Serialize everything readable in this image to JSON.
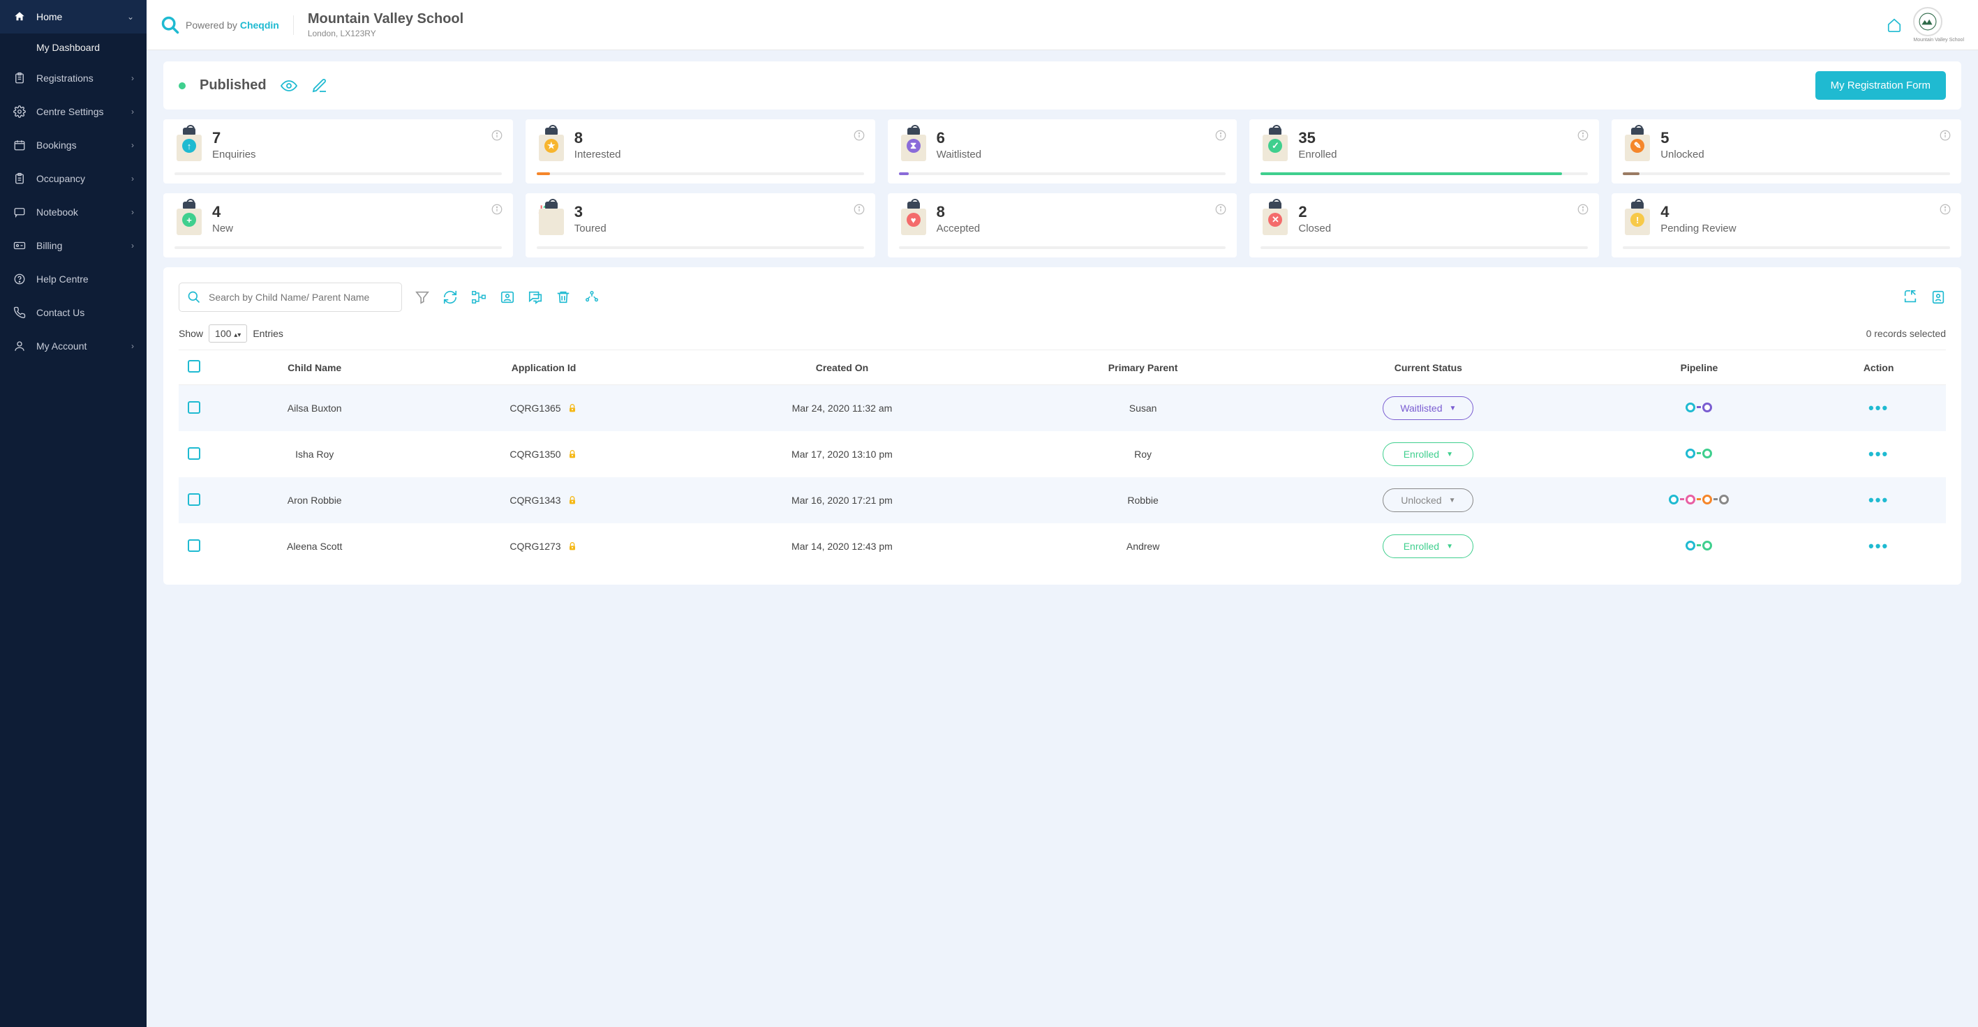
{
  "brand": {
    "prefix": "Powered by ",
    "name": "Cheqdin"
  },
  "school": {
    "name": "Mountain Valley School",
    "location": "London, LX123RY",
    "logo_label": "Mountain Valley School"
  },
  "sidebar": {
    "items": [
      {
        "label": "Home",
        "icon": "home",
        "expandable": true,
        "active": true
      },
      {
        "label": "Registrations",
        "icon": "clipboard",
        "expandable": true
      },
      {
        "label": "Centre Settings",
        "icon": "gear",
        "expandable": true
      },
      {
        "label": "Bookings",
        "icon": "calendar",
        "expandable": true
      },
      {
        "label": "Occupancy",
        "icon": "clipboard-check",
        "expandable": true
      },
      {
        "label": "Notebook",
        "icon": "message",
        "expandable": true
      },
      {
        "label": "Billing",
        "icon": "billing",
        "expandable": true
      },
      {
        "label": "Help Centre",
        "icon": "help",
        "expandable": false
      },
      {
        "label": "Contact Us",
        "icon": "phone",
        "expandable": false
      },
      {
        "label": "My Account",
        "icon": "user",
        "expandable": true
      }
    ],
    "sub_item": "My Dashboard"
  },
  "published": {
    "label": "Published",
    "button": "My Registration Form"
  },
  "cards": {
    "row1": [
      {
        "count": "7",
        "label": "Enquiries",
        "fill_pct": 0,
        "fill_color": "#1fbad1",
        "icon_bg": "#1fbad1",
        "glyph": "↑"
      },
      {
        "count": "8",
        "label": "Interested",
        "fill_pct": 4,
        "fill_color": "#f5862a",
        "icon_bg": "#f7b52e",
        "glyph": "★"
      },
      {
        "count": "6",
        "label": "Waitlisted",
        "fill_pct": 3,
        "fill_color": "#8a6bd9",
        "icon_bg": "#8a6bd9",
        "glyph": "⧗"
      },
      {
        "count": "35",
        "label": "Enrolled",
        "fill_pct": 92,
        "fill_color": "#3fcf8e",
        "icon_bg": "#3fcf8e",
        "glyph": "✓"
      },
      {
        "count": "5",
        "label": "Unlocked",
        "fill_pct": 5,
        "fill_color": "#9a7b63",
        "icon_bg": "#f5862a",
        "glyph": "✎"
      }
    ],
    "row2": [
      {
        "count": "4",
        "label": "New",
        "fill_pct": 0,
        "fill_color": "#3fcf8e",
        "icon_bg": "#3fcf8e",
        "glyph": "+"
      },
      {
        "count": "3",
        "label": "Toured",
        "fill_pct": 0,
        "fill_color": "#f5862a",
        "icon_bg": "#ffffff",
        "glyph": "ta"
      },
      {
        "count": "8",
        "label": "Accepted",
        "fill_pct": 0,
        "fill_color": "#f46b6b",
        "icon_bg": "#f46b6b",
        "glyph": "♥"
      },
      {
        "count": "2",
        "label": "Closed",
        "fill_pct": 0,
        "fill_color": "#f46b6b",
        "icon_bg": "#f46b6b",
        "glyph": "✕"
      },
      {
        "count": "4",
        "label": "Pending Review",
        "fill_pct": 0,
        "fill_color": "#f7c948",
        "icon_bg": "#f7c948",
        "glyph": "!"
      }
    ]
  },
  "search": {
    "placeholder": "Search by Child Name/ Parent Name"
  },
  "show_entries": {
    "prefix": "Show",
    "count": "100",
    "suffix": "Entries"
  },
  "records_selected": "0 records selected",
  "table": {
    "columns": [
      "",
      "Child Name",
      "Application Id",
      "Created On",
      "Primary Parent",
      "Current Status",
      "Pipeline",
      "Action"
    ],
    "rows": [
      {
        "child": "Ailsa Buxton",
        "app_id": "CQRG1365",
        "created": "Mar 24, 2020 11:32 am",
        "parent": "Susan",
        "status": "Waitlisted",
        "status_color": "#7a5dd1",
        "pipeline": [
          "#1fbad1",
          "#7a5dd1"
        ]
      },
      {
        "child": "Isha Roy",
        "app_id": "CQRG1350",
        "created": "Mar 17, 2020 13:10 pm",
        "parent": "Roy",
        "status": "Enrolled",
        "status_color": "#3fcf8e",
        "pipeline": [
          "#1fbad1",
          "#3fcf8e"
        ]
      },
      {
        "child": "Aron Robbie",
        "app_id": "CQRG1343",
        "created": "Mar 16, 2020 17:21 pm",
        "parent": "Robbie",
        "status": "Unlocked",
        "status_color": "#888888",
        "pipeline": [
          "#1fbad1",
          "#e85fa2",
          "#f5862a",
          "#888888"
        ]
      },
      {
        "child": "Aleena Scott",
        "app_id": "CQRG1273",
        "created": "Mar 14, 2020 12:43 pm",
        "parent": "Andrew",
        "status": "Enrolled",
        "status_color": "#3fcf8e",
        "pipeline": [
          "#1fbad1",
          "#3fcf8e"
        ]
      }
    ]
  },
  "colors": {
    "primary": "#1fbad1",
    "sidebar": "#0e1d36",
    "bg": "#eef3fb"
  }
}
